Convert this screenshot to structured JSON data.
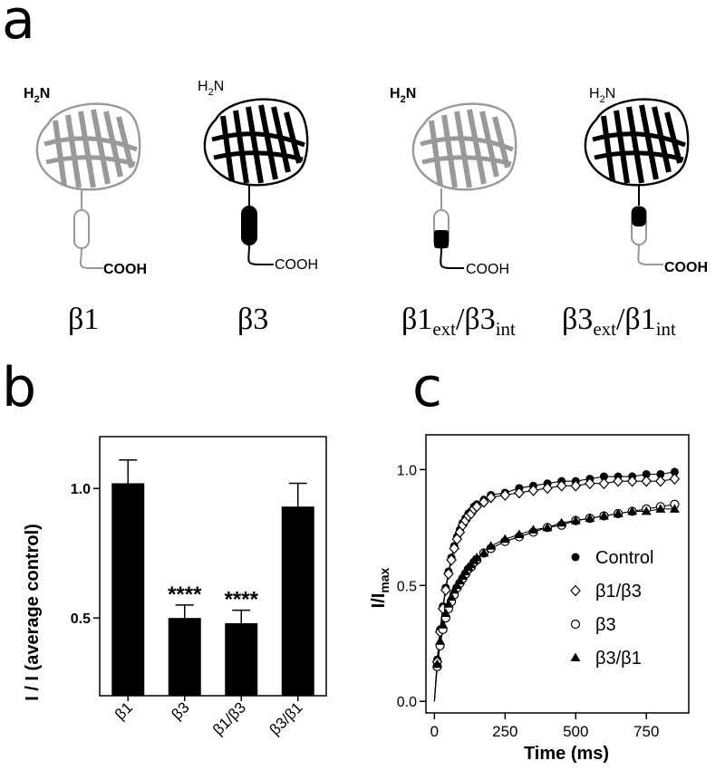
{
  "panels": {
    "a": "a",
    "b": "b",
    "c": "c"
  },
  "proteins": [
    {
      "key": "b1",
      "label_main": "β1",
      "nh2": "H",
      "nh2_sub": "2",
      "nh2_end": "N",
      "cterm": "COOH"
    },
    {
      "key": "b3",
      "label_main": "β3",
      "nh2": "H",
      "nh2_sub": "2",
      "nh2_end": "N",
      "cterm": "COOH"
    },
    {
      "key": "b1b3",
      "label_a": "β1",
      "label_a_sub": "ext",
      "label_b": "/β3",
      "label_b_sub": "int",
      "nh2": "H",
      "nh2_sub": "2",
      "nh2_end": "N",
      "cterm": "COOH"
    },
    {
      "key": "b3b1",
      "label_a": "β3",
      "label_a_sub": "ext",
      "label_b": "/β1",
      "label_b_sub": "int",
      "nh2": "H",
      "nh2_sub": "2",
      "nh2_end": "N",
      "cterm": "COOH"
    }
  ],
  "chart_data": [
    {
      "type": "bar",
      "panel": "b",
      "ylabel": "I / I (average control)",
      "categories": [
        "β1",
        "β3",
        "β1/β3",
        "β3/β1"
      ],
      "values": [
        1.02,
        0.5,
        0.48,
        0.93
      ],
      "errors": [
        0.09,
        0.05,
        0.05,
        0.09
      ],
      "significance": [
        "",
        "****",
        "****",
        ""
      ],
      "ylim": [
        0.2,
        1.2
      ],
      "yticks": [
        0.5,
        1.0
      ],
      "ytick_labels": [
        "0.5",
        "1.0"
      ],
      "bar_color": "#000000"
    },
    {
      "type": "scatter",
      "panel": "c",
      "xlabel": "Time (ms)",
      "ylabel_main": "I/I",
      "ylabel_sub": "max",
      "xlim": [
        -30,
        900
      ],
      "ylim": [
        -0.05,
        1.15
      ],
      "xticks": [
        0,
        250,
        500,
        750
      ],
      "xtick_labels": [
        "0",
        "250",
        "500",
        "750"
      ],
      "yticks": [
        0.0,
        0.5,
        1.0
      ],
      "ytick_labels": [
        "0.0",
        "0.5",
        "1.0"
      ],
      "x": [
        10,
        20,
        30,
        40,
        50,
        60,
        70,
        80,
        90,
        100,
        110,
        120,
        130,
        140,
        150,
        175,
        200,
        250,
        300,
        350,
        400,
        450,
        500,
        550,
        600,
        650,
        700,
        750,
        800,
        850
      ],
      "series": [
        {
          "name": "Control",
          "marker": "filled-circle",
          "values": [
            0.18,
            0.31,
            0.41,
            0.49,
            0.56,
            0.62,
            0.67,
            0.71,
            0.74,
            0.77,
            0.79,
            0.81,
            0.82,
            0.84,
            0.85,
            0.87,
            0.89,
            0.9,
            0.92,
            0.93,
            0.94,
            0.95,
            0.95,
            0.96,
            0.97,
            0.97,
            0.97,
            0.98,
            0.98,
            0.99
          ]
        },
        {
          "name": "β1/β3",
          "marker": "open-diamond",
          "values": [
            0.17,
            0.3,
            0.4,
            0.48,
            0.55,
            0.61,
            0.66,
            0.7,
            0.73,
            0.76,
            0.78,
            0.8,
            0.81,
            0.83,
            0.84,
            0.86,
            0.88,
            0.89,
            0.9,
            0.91,
            0.92,
            0.93,
            0.93,
            0.94,
            0.94,
            0.95,
            0.95,
            0.95,
            0.95,
            0.96
          ]
        },
        {
          "name": "β3",
          "marker": "open-circle",
          "values": [
            0.15,
            0.24,
            0.31,
            0.36,
            0.4,
            0.43,
            0.46,
            0.49,
            0.51,
            0.53,
            0.55,
            0.57,
            0.58,
            0.6,
            0.61,
            0.64,
            0.66,
            0.69,
            0.71,
            0.73,
            0.75,
            0.76,
            0.78,
            0.79,
            0.8,
            0.81,
            0.82,
            0.83,
            0.84,
            0.85
          ]
        },
        {
          "name": "β3/β1",
          "marker": "filled-triangle",
          "values": [
            0.16,
            0.26,
            0.33,
            0.38,
            0.42,
            0.45,
            0.48,
            0.5,
            0.52,
            0.54,
            0.56,
            0.58,
            0.59,
            0.61,
            0.62,
            0.64,
            0.67,
            0.7,
            0.72,
            0.74,
            0.75,
            0.77,
            0.78,
            0.79,
            0.8,
            0.81,
            0.82,
            0.82,
            0.83,
            0.83
          ]
        }
      ],
      "legend_placement": "bottom-right"
    }
  ]
}
